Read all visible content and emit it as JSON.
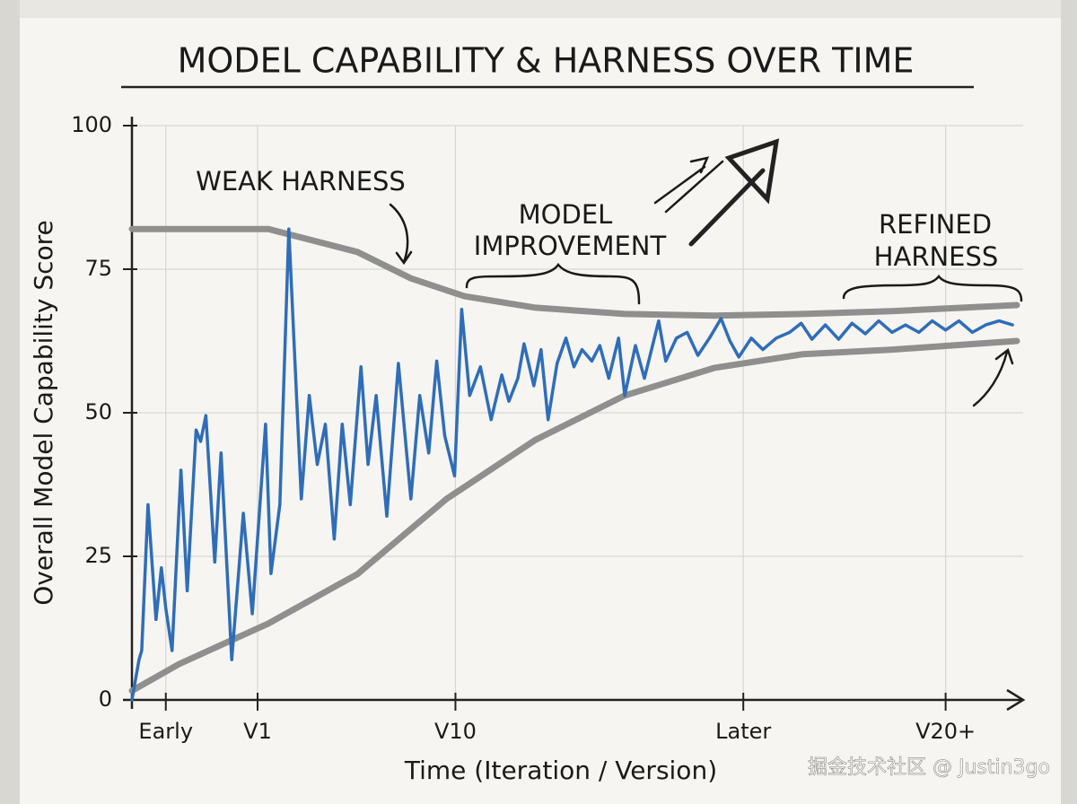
{
  "chart_data": {
    "type": "line",
    "title": "MODEL CAPABILITY & HARNESS OVER TIME",
    "ylabel": "Overall Model Capability Score",
    "xlabel": "Time (Iteration / Version)",
    "xlim": [
      0,
      1000
    ],
    "ylim": [
      0,
      100
    ],
    "yticks": [
      0,
      25,
      50,
      75,
      100
    ],
    "xticks": [
      {
        "value": 38,
        "label": "Early"
      },
      {
        "value": 141,
        "label": "V1"
      },
      {
        "value": 363,
        "label": "V10"
      },
      {
        "value": 686,
        "label": "Later"
      },
      {
        "value": 913,
        "label": "V20+"
      }
    ],
    "grid": true,
    "annotations": [
      {
        "lines": [
          "WEAK HARNESS"
        ]
      },
      {
        "lines": [
          "MODEL",
          "IMPROVEMENT"
        ]
      },
      {
        "lines": [
          "REFINED",
          "HARNESS"
        ]
      }
    ],
    "watermark": "掘金技术社区 @ Justin3go",
    "series": [
      {
        "color": "#2f6db8",
        "width": 3.5,
        "x": [
          0,
          8,
          11,
          18,
          27,
          33,
          38,
          45,
          55,
          62,
          72,
          77,
          83,
          93,
          100,
          112,
          125,
          135,
          150,
          156,
          166,
          176,
          190,
          199,
          208,
          217,
          227,
          236,
          245,
          257,
          265,
          274,
          286,
          299,
          313,
          323,
          333,
          342,
          351,
          362,
          370,
          379,
          391,
          403,
          415,
          423,
          433,
          440,
          451,
          459,
          467,
          477,
          487,
          496,
          505,
          516,
          525,
          535,
          546,
          553,
          565,
          575,
          591,
          599,
          611,
          623,
          635,
          648,
          661,
          671,
          681,
          695,
          708,
          723,
          738,
          751,
          763,
          778,
          793,
          808,
          823,
          838,
          853,
          868,
          883,
          898,
          913,
          928,
          943,
          958,
          973,
          988
        ],
        "values": [
          0,
          7,
          8.6,
          34,
          14,
          23,
          16,
          8.6,
          40,
          19,
          47,
          45,
          49.5,
          24,
          43,
          7,
          32.5,
          15,
          48,
          22,
          34,
          82,
          35,
          53,
          41,
          48,
          28,
          48,
          34,
          58,
          41,
          53,
          32,
          58.6,
          35,
          53,
          43,
          59,
          46,
          39,
          68,
          53,
          58,
          48.8,
          56.6,
          52,
          56,
          62,
          54.7,
          61,
          48.8,
          58.6,
          63,
          58,
          61,
          59,
          61.7,
          56,
          63,
          53,
          61.7,
          56,
          66,
          59,
          63,
          64,
          60,
          63,
          66.4,
          62.5,
          59.7,
          63,
          61,
          63,
          64,
          65.6,
          62.8,
          65.3,
          62.8,
          65.6,
          63.75,
          66,
          64,
          65.3,
          64,
          66,
          64.4,
          66,
          64,
          65.3,
          66,
          65.3
        ]
      },
      {
        "color": "#8f8f8f",
        "width": 7,
        "x": [
          0,
          153,
          253,
          313,
          373,
          453,
          553,
          653,
          753,
          853,
          993
        ],
        "values": [
          82,
          82,
          78,
          73.4,
          70.3,
          68.3,
          67.2,
          66.9,
          67.2,
          67.7,
          68.75
        ]
      },
      {
        "color": "#8f8f8f",
        "width": 7,
        "x": [
          0,
          53,
          153,
          253,
          353,
          453,
          553,
          653,
          753,
          853,
          993
        ],
        "values": [
          1.6,
          6.25,
          13.3,
          21.9,
          35,
          45.3,
          53,
          57.8,
          60.2,
          61,
          62.5
        ]
      }
    ]
  }
}
